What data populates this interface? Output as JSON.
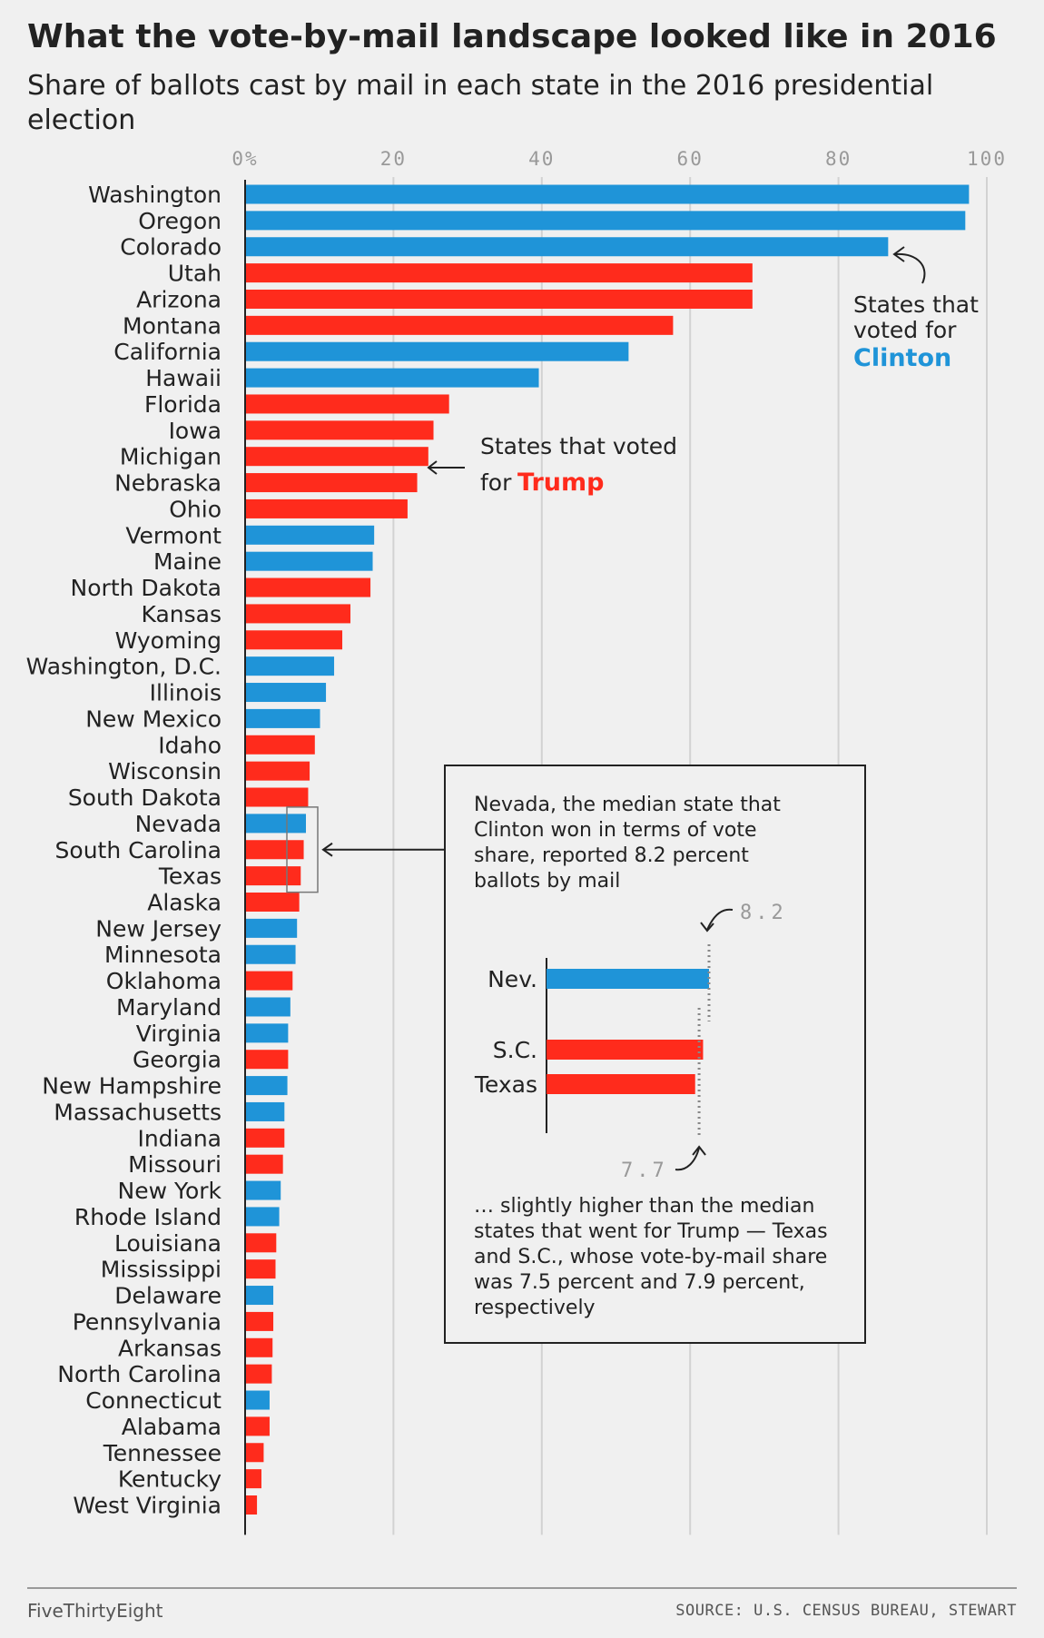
{
  "title": "What the vote-by-mail landscape looked like in 2016",
  "subtitle": "Share of ballots cast by mail in each state in the 2016 presidential election",
  "colors": {
    "clinton": "#1f94d8",
    "trump": "#ff2b1c"
  },
  "chart_data": {
    "type": "bar",
    "orientation": "horizontal",
    "xlim": [
      0,
      100
    ],
    "x_ticks": [
      "0%",
      "20",
      "40",
      "60",
      "80",
      "100"
    ],
    "categories": [
      "Washington",
      "Oregon",
      "Colorado",
      "Utah",
      "Arizona",
      "Montana",
      "California",
      "Hawaii",
      "Florida",
      "Iowa",
      "Michigan",
      "Nebraska",
      "Ohio",
      "Vermont",
      "Maine",
      "North Dakota",
      "Kansas",
      "Wyoming",
      "Washington, D.C.",
      "Illinois",
      "New Mexico",
      "Idaho",
      "Wisconsin",
      "South Dakota",
      "Nevada",
      "South Carolina",
      "Texas",
      "Alaska",
      "New Jersey",
      "Minnesota",
      "Oklahoma",
      "Maryland",
      "Virginia",
      "Georgia",
      "New Hampshire",
      "Massachusetts",
      "Indiana",
      "Missouri",
      "New York",
      "Rhode Island",
      "Louisiana",
      "Mississippi",
      "Delaware",
      "Pennsylvania",
      "Arkansas",
      "North Carolina",
      "Connecticut",
      "Alabama",
      "Tennessee",
      "Kentucky",
      "West Virginia"
    ],
    "values": [
      97.6,
      97.1,
      86.7,
      68.4,
      68.4,
      57.7,
      51.7,
      39.6,
      27.5,
      25.4,
      24.7,
      23.2,
      21.9,
      17.4,
      17.2,
      16.9,
      14.2,
      13.1,
      12.0,
      10.9,
      10.1,
      9.4,
      8.7,
      8.5,
      8.2,
      7.9,
      7.5,
      7.3,
      7.0,
      6.8,
      6.4,
      6.1,
      5.8,
      5.8,
      5.7,
      5.3,
      5.3,
      5.1,
      4.8,
      4.6,
      4.2,
      4.1,
      3.8,
      3.8,
      3.7,
      3.6,
      3.3,
      3.3,
      2.5,
      2.2,
      1.6
    ],
    "winner": [
      "C",
      "C",
      "C",
      "T",
      "T",
      "T",
      "C",
      "C",
      "T",
      "T",
      "T",
      "T",
      "T",
      "C",
      "C",
      "T",
      "T",
      "T",
      "C",
      "C",
      "C",
      "T",
      "T",
      "T",
      "C",
      "T",
      "T",
      "T",
      "C",
      "C",
      "T",
      "C",
      "C",
      "T",
      "C",
      "C",
      "T",
      "T",
      "C",
      "C",
      "T",
      "T",
      "C",
      "T",
      "T",
      "T",
      "C",
      "T",
      "T",
      "T",
      "T"
    ],
    "annotations": {
      "clinton": {
        "line1": "States that",
        "line2": "voted for",
        "name": "Clinton"
      },
      "trump": {
        "line1": "States that voted",
        "line2": "for",
        "name": "Trump"
      }
    },
    "inset": {
      "intro_lines": [
        "Nevada, the median state that",
        "Clinton won in terms of vote",
        "share, reported 8.2 percent",
        "ballots by mail"
      ],
      "bars": [
        {
          "label": "Nev.",
          "value": 8.2,
          "winner": "C"
        },
        {
          "label": "S.C.",
          "value": 7.9,
          "winner": "T"
        },
        {
          "label": "Texas",
          "value": 7.5,
          "winner": "T"
        }
      ],
      "marker_high": "8.2",
      "marker_low": "7.7",
      "outro_lines": [
        "… slightly higher than the median",
        "states that went for Trump — Texas",
        "and S.C., whose vote-by-mail share",
        "was 7.5 percent and 7.9 percent,",
        "respectively"
      ]
    }
  },
  "footer": {
    "brand": "FiveThirtyEight",
    "source": "SOURCE: U.S. CENSUS BUREAU, STEWART"
  }
}
